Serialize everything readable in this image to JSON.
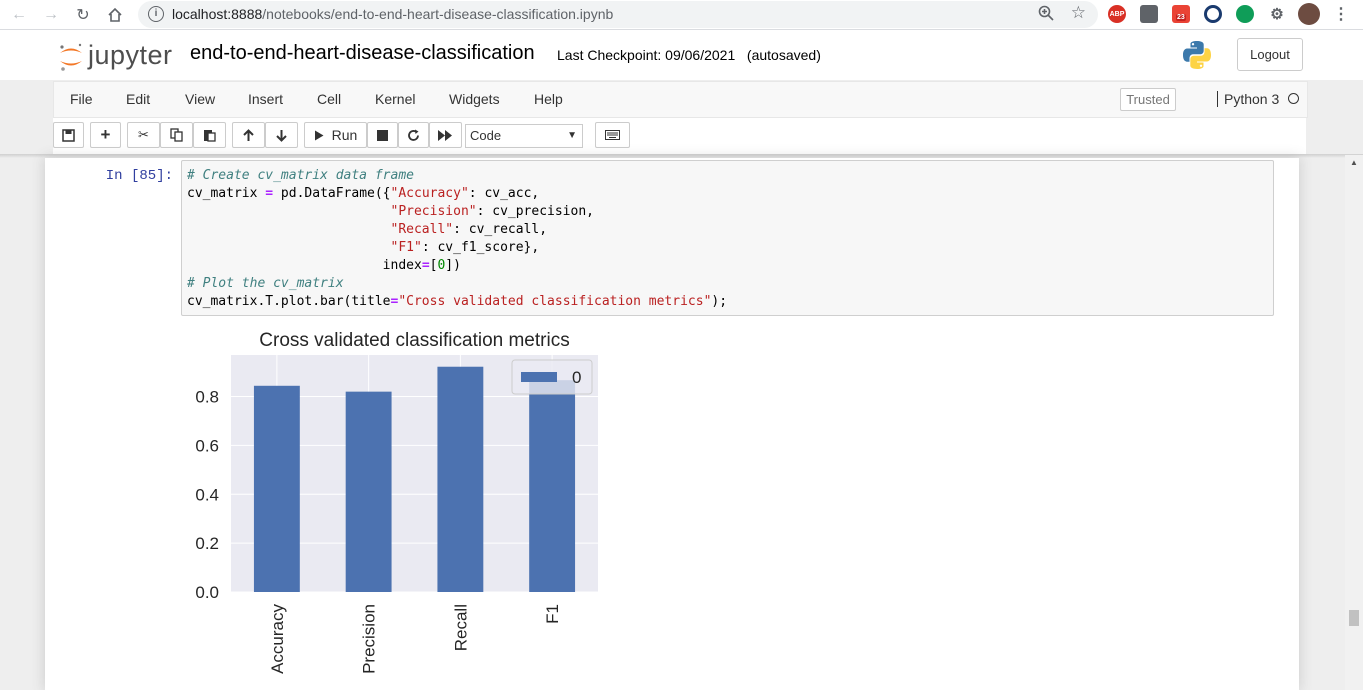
{
  "browser": {
    "url_host": "localhost:8888",
    "url_path": "/notebooks/end-to-end-heart-disease-classification.ipynb",
    "gmail_badge": "23",
    "abp_label": "ABP"
  },
  "header": {
    "logo_text": "jupyter",
    "notebook_title": "end-to-end-heart-disease-classification",
    "checkpoint": "Last Checkpoint: 09/06/2021",
    "autosaved": "(autosaved)",
    "logout_label": "Logout"
  },
  "menu": {
    "items": [
      "File",
      "Edit",
      "View",
      "Insert",
      "Cell",
      "Kernel",
      "Widgets",
      "Help"
    ],
    "trusted_label": "Trusted",
    "kernel_name": "Python 3"
  },
  "toolbar": {
    "run_label": "Run",
    "cell_type": "Code"
  },
  "cell": {
    "prompt": "In [85]:",
    "code_lines": [
      "# Create cv_matrix data frame",
      "cv_matrix = pd.DataFrame({\"Accuracy\": cv_acc,",
      "                          \"Precision\": cv_precision,",
      "                          \"Recall\": cv_recall,",
      "                          \"F1\": cv_f1_score},",
      "                         index=[0])",
      "# Plot the cv_matrix",
      "cv_matrix.T.plot.bar(title=\"Cross validated classification metrics\");"
    ]
  },
  "chart_data": {
    "type": "bar",
    "title": "Cross validated classification metrics",
    "categories": [
      "Accuracy",
      "Precision",
      "Recall",
      "F1"
    ],
    "series": [
      {
        "name": "0",
        "values": [
          0.844,
          0.82,
          0.922,
          0.867
        ]
      }
    ],
    "ylim": [
      0,
      0.97
    ],
    "yticks": [
      "0.0",
      "0.2",
      "0.4",
      "0.6",
      "0.8"
    ],
    "legend": "top-right",
    "grid": true,
    "colors": {
      "bar": "#4c72b0",
      "plot_bg": "#eaeaf2"
    }
  }
}
